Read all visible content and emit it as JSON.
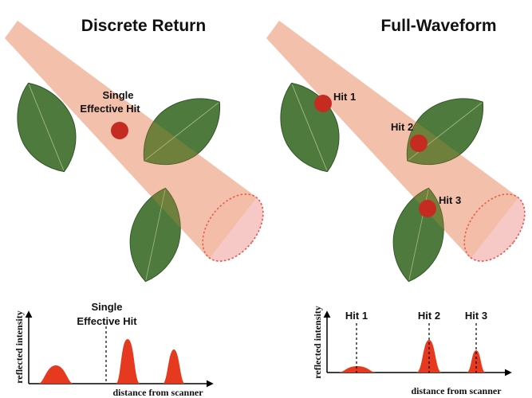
{
  "colors": {
    "beam_fill": "#f6c9c6",
    "beam_edge": "#e8504a",
    "hit_dot": "#c62b22",
    "leaf_green": "#4e7a3d",
    "leaf_dark": "#2f5426",
    "peak_fill": "#e53a1f"
  },
  "left_panel": {
    "title": "Discrete Return",
    "hit_label_line1": "Single",
    "hit_label_line2": "Effective Hit",
    "chart_label_line1": "Single",
    "chart_label_line2": "Effective Hit",
    "ylabel": "reflected intensity",
    "xlabel": "distance from scanner"
  },
  "right_panel": {
    "title": "Full-Waveform",
    "hit1": "Hit 1",
    "hit2": "Hit 2",
    "hit3": "Hit 3",
    "chart_hit1": "Hit 1",
    "chart_hit2": "Hit 2",
    "chart_hit3": "Hit 3",
    "ylabel": "reflected intensity",
    "xlabel": "distance from scanner"
  }
}
